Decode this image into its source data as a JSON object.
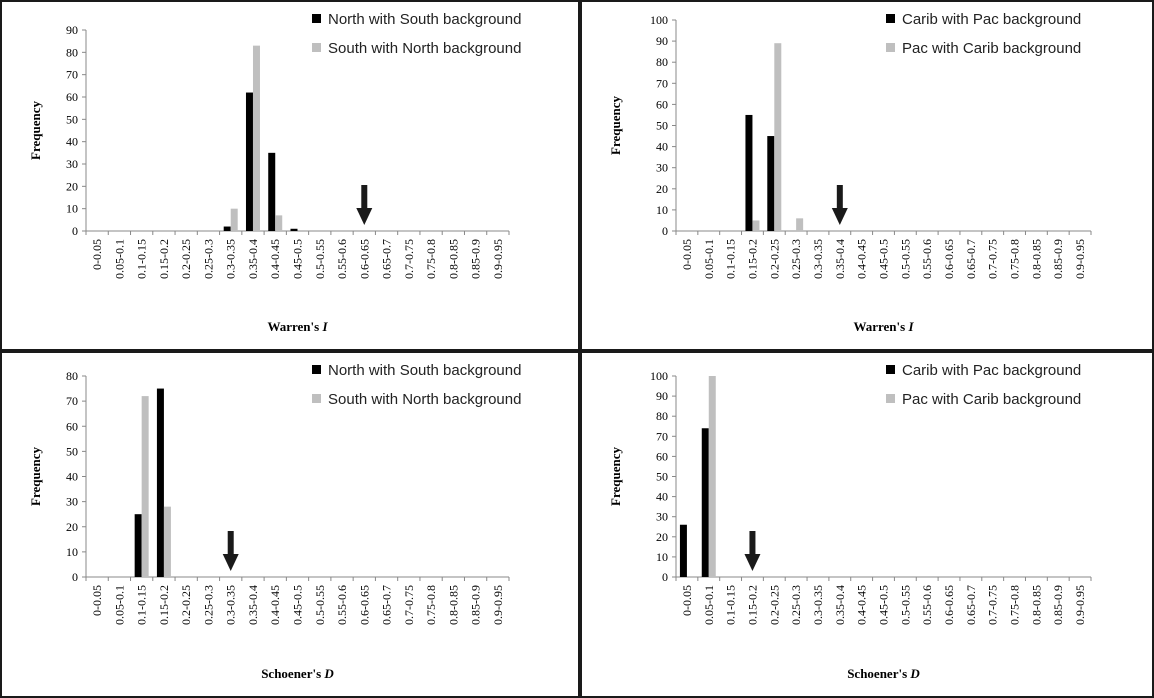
{
  "colors": {
    "series1": "#000000",
    "series2": "#bfbfbf",
    "panel_border": "#1a1a1a",
    "axis": "#888888"
  },
  "categories": [
    "0-0.05",
    "0.05-0.1",
    "0.1-0.15",
    "0.15-0.2",
    "0.2-0.25",
    "0.25-0.3",
    "0.3-0.35",
    "0.35-0.4",
    "0.4-0.45",
    "0.45-0.5",
    "0.5-0.55",
    "0.55-0.6",
    "0.6-0.65",
    "0.65-0.7",
    "0.7-0.75",
    "0.75-0.8",
    "0.8-0.85",
    "0.85-0.9",
    "0.9-0.95"
  ],
  "chart_data": [
    {
      "type": "bar",
      "xlabel_prefix": "Warren's ",
      "xlabel_italic": "I",
      "ylabel": "Frequency",
      "ylim": [
        0,
        90
      ],
      "yticks": [
        0,
        10,
        20,
        30,
        40,
        50,
        60,
        70,
        80,
        90
      ],
      "legend_position": "top-right",
      "marker_arrow_category": "0.6-0.65",
      "series": [
        {
          "name": "North with South background",
          "values": [
            0,
            0,
            0,
            0,
            0,
            0,
            2,
            62,
            35,
            1,
            0,
            0,
            0,
            0,
            0,
            0,
            0,
            0,
            0
          ]
        },
        {
          "name": "South with North background",
          "values": [
            0,
            0,
            0,
            0,
            0,
            0,
            10,
            83,
            7,
            0,
            0,
            0,
            0,
            0,
            0,
            0,
            0,
            0,
            0
          ]
        }
      ]
    },
    {
      "type": "bar",
      "xlabel_prefix": "Warren's ",
      "xlabel_italic": "I",
      "ylabel": "Frequency",
      "ylim": [
        0,
        100
      ],
      "yticks": [
        0,
        10,
        20,
        30,
        40,
        50,
        60,
        70,
        80,
        90,
        100
      ],
      "legend_position": "top-right",
      "marker_arrow_category": "0.35-0.4",
      "series": [
        {
          "name": "Carib with Pac background",
          "values": [
            0,
            0,
            0,
            55,
            45,
            0,
            0,
            0,
            0,
            0,
            0,
            0,
            0,
            0,
            0,
            0,
            0,
            0,
            0
          ]
        },
        {
          "name": "Pac with Carib background",
          "values": [
            0,
            0,
            0,
            5,
            89,
            6,
            0,
            0,
            0,
            0,
            0,
            0,
            0,
            0,
            0,
            0,
            0,
            0,
            0
          ]
        }
      ]
    },
    {
      "type": "bar",
      "xlabel_prefix": "Schoener's ",
      "xlabel_italic": "D",
      "ylabel": "Frequency",
      "ylim": [
        0,
        80
      ],
      "yticks": [
        0,
        10,
        20,
        30,
        40,
        50,
        60,
        70,
        80
      ],
      "legend_position": "top-right",
      "marker_arrow_category": "0.3-0.35",
      "series": [
        {
          "name": "North with South background",
          "values": [
            0,
            0,
            25,
            75,
            0,
            0,
            0,
            0,
            0,
            0,
            0,
            0,
            0,
            0,
            0,
            0,
            0,
            0,
            0
          ]
        },
        {
          "name": "South with North background",
          "values": [
            0,
            0,
            72,
            28,
            0,
            0,
            0,
            0,
            0,
            0,
            0,
            0,
            0,
            0,
            0,
            0,
            0,
            0,
            0
          ]
        }
      ]
    },
    {
      "type": "bar",
      "xlabel_prefix": "Schoener's ",
      "xlabel_italic": "D",
      "ylabel": "Frequency",
      "ylim": [
        0,
        100
      ],
      "yticks": [
        0,
        10,
        20,
        30,
        40,
        50,
        60,
        70,
        80,
        90,
        100
      ],
      "legend_position": "top-right",
      "marker_arrow_category": "0.15-0.2",
      "series": [
        {
          "name": "Carib with Pac background",
          "values": [
            26,
            74,
            0,
            0,
            0,
            0,
            0,
            0,
            0,
            0,
            0,
            0,
            0,
            0,
            0,
            0,
            0,
            0,
            0
          ]
        },
        {
          "name": "Pac with Carib background",
          "values": [
            0,
            100,
            0,
            0,
            0,
            0,
            0,
            0,
            0,
            0,
            0,
            0,
            0,
            0,
            0,
            0,
            0,
            0,
            0
          ]
        }
      ]
    }
  ]
}
